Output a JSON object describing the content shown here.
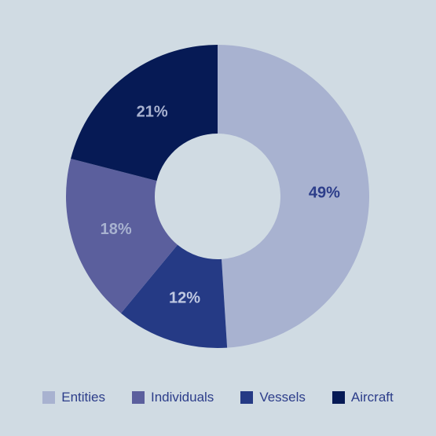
{
  "chart_data": {
    "type": "pie",
    "donut": true,
    "title": "",
    "categories": [
      "Entities",
      "Vessels",
      "Individuals",
      "Aircraft"
    ],
    "values": [
      49,
      12,
      18,
      21
    ],
    "labels": [
      "49%",
      "12%",
      "18%",
      "21%"
    ],
    "colors": [
      "#a8b2d0",
      "#253a85",
      "#5b5f9d",
      "#061a55"
    ],
    "label_colors": [
      "#2c3d8a",
      "#c0c9e2",
      "#a8b2d0",
      "#a8b2d0"
    ],
    "legend_placement": "bottom"
  },
  "legend": [
    {
      "label": "Entities",
      "color": "#a8b2d0"
    },
    {
      "label": "Individuals",
      "color": "#5b5f9d"
    },
    {
      "label": "Vessels",
      "color": "#253a85"
    },
    {
      "label": "Aircraft",
      "color": "#061a55"
    }
  ]
}
